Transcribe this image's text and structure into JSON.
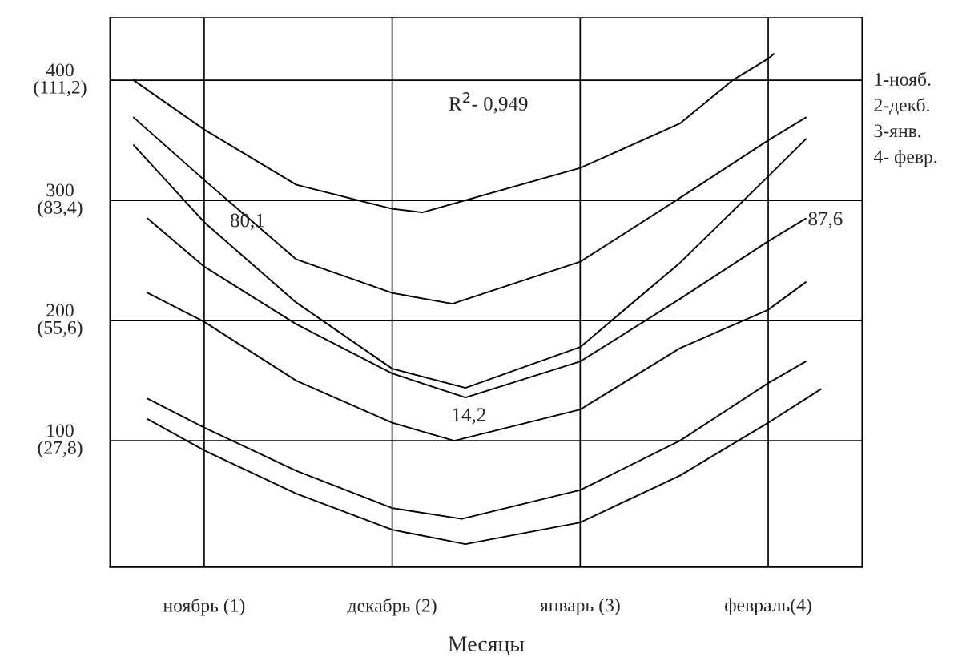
{
  "chart_data": {
    "type": "line",
    "xlabel": "Месяцы",
    "xlim": [
      0.5,
      4.5
    ],
    "xticks": [
      {
        "value": 1,
        "label": "ноябрь (1)"
      },
      {
        "value": 2,
        "label": "декабрь (2)"
      },
      {
        "value": 3,
        "label": "январь (3)"
      },
      {
        "value": 4,
        "label": "февраль(4)"
      }
    ],
    "ylim": [
      -5,
      452
    ],
    "yticks": [
      100,
      200,
      300,
      400
    ],
    "y2lim": [
      -1.39,
      125.656
    ],
    "y2ticks": [
      {
        "value": 27.8,
        "label": "(27,8)"
      },
      {
        "value": 55.6,
        "label": "(55,6)"
      },
      {
        "value": 83.4,
        "label": "(83,4)"
      },
      {
        "value": 111.2,
        "label": "(111,2)"
      }
    ],
    "grid": true,
    "series": [
      {
        "color": "#000000",
        "x": [
          0.625,
          1,
          1.49,
          2,
          2.16,
          3,
          3.53,
          3.81,
          4,
          4.03
        ],
        "values": [
          400,
          359,
          313,
          293,
          290,
          327,
          364,
          400,
          418,
          422
        ]
      },
      {
        "color": "#000000",
        "x": [
          0.625,
          1,
          1.49,
          2,
          2.32,
          3,
          3.53,
          4,
          4.2
        ],
        "values": [
          369,
          317,
          251,
          223,
          214,
          249,
          302,
          350,
          369
        ]
      },
      {
        "color": "#000000",
        "x": [
          0.625,
          1,
          1.49,
          2,
          2.39,
          3,
          3.53,
          4,
          4.2
        ],
        "values": [
          346,
          282,
          215,
          160,
          144,
          178,
          248,
          320,
          351
        ]
      },
      {
        "color": "#000000",
        "x": [
          0.7,
          1,
          1.49,
          2,
          2.39,
          3,
          3.53,
          4,
          4.2
        ],
        "values": [
          285,
          245,
          197,
          156,
          136,
          166,
          218,
          266,
          285
        ]
      },
      {
        "color": "#000000",
        "x": [
          0.7,
          1,
          1.49,
          2,
          2.33,
          3,
          3.53,
          4,
          4.2
        ],
        "values": [
          223,
          199,
          150,
          115,
          100,
          126,
          177,
          209,
          232
        ]
      },
      {
        "color": "#000000",
        "x": [
          0.7,
          1,
          1.49,
          2,
          2.37,
          3,
          3.53,
          4,
          4.2
        ],
        "values": [
          135,
          111,
          75,
          44,
          35,
          59,
          100,
          148,
          166
        ]
      },
      {
        "color": "#000000",
        "x": [
          0.7,
          1,
          1.49,
          2,
          2.39,
          3,
          3.53,
          4,
          4.28
        ],
        "values": [
          118,
          92,
          56,
          26,
          14,
          32,
          71,
          115,
          143
        ]
      }
    ],
    "annotations": [
      {
        "text": "80,1",
        "x": 1.23,
        "y": 282
      },
      "R$^{2}$- 0,949",
      "14,2",
      "87,6",
      "1-нояб.",
      "2-декб.",
      "3-янв.",
      "4- февр."
    ]
  }
}
